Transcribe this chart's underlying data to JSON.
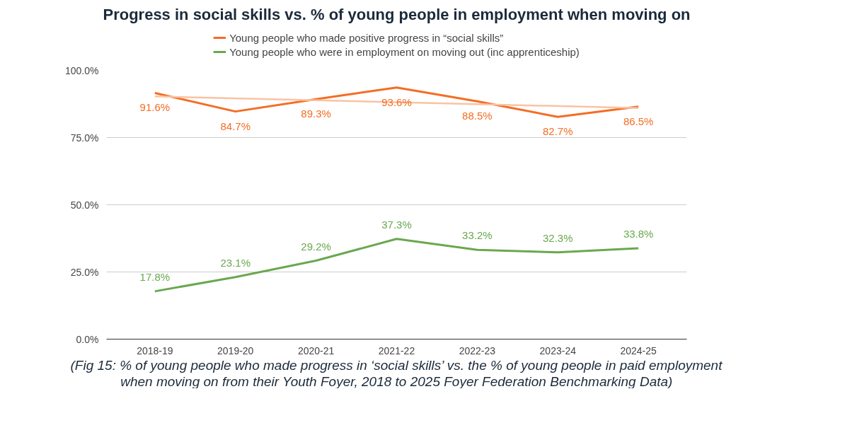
{
  "chart_data": {
    "type": "line",
    "title": "Progress in social skills vs. % of young people in employment when moving on",
    "categories": [
      "2018-19",
      "2019-20",
      "2020-21",
      "2021-22",
      "2022-23",
      "2023-24",
      "2024-25"
    ],
    "series": [
      {
        "name": "Young people who made positive progress in “social skills”",
        "color": "#f46d25",
        "values": [
          91.6,
          84.7,
          89.3,
          93.6,
          88.5,
          82.7,
          86.5
        ],
        "value_labels": [
          "91.6%",
          "84.7%",
          "89.3%",
          "93.6%",
          "88.5%",
          "82.7%",
          "86.5%"
        ]
      },
      {
        "name": "Young people who were in employment on moving out (inc apprenticeship)",
        "color": "#6aa84f",
        "values": [
          17.8,
          23.1,
          29.2,
          37.3,
          33.2,
          32.3,
          33.8
        ],
        "value_labels": [
          "17.8%",
          "23.1%",
          "29.2%",
          "37.3%",
          "33.2%",
          "32.3%",
          "33.8%"
        ]
      },
      {
        "type": "line",
        "color": "#f9c3a3",
        "x": [
          "2018-19",
          "2024-25"
        ],
        "values": [
          90.3,
          86.0
        ]
      }
    ],
    "ylim": [
      0,
      100
    ],
    "yticks": [
      {
        "value": 0,
        "label": "0.0%"
      },
      {
        "value": 25,
        "label": "25.0%"
      },
      {
        "value": 50,
        "label": "50.0%"
      },
      {
        "value": 75,
        "label": "75.0%"
      },
      {
        "value": 100,
        "label": "100.0%"
      }
    ],
    "grid": "y",
    "legend": "top",
    "marker": "none",
    "line_style": "solid",
    "annotations": [
      "(Fig 15: % of young people who made progress in ‘social skills’ vs. the % of young people in paid employment when moving on from their Youth Foyer, 2018 to 2025 Foyer Federation Benchmarking Data)"
    ]
  }
}
